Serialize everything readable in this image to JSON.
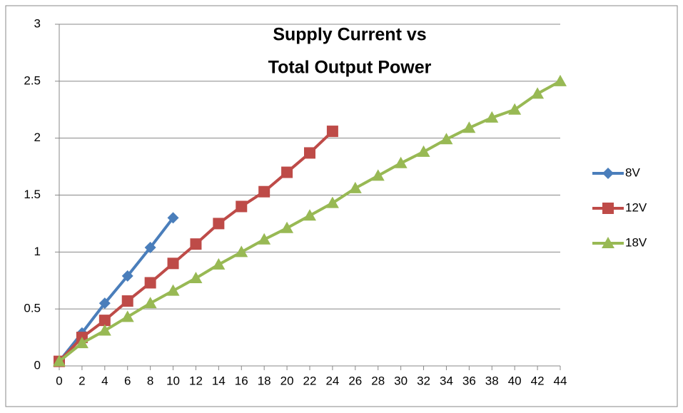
{
  "chart_data": {
    "type": "line",
    "title": [
      "Supply Current vs",
      "Total Output Power"
    ],
    "xlim": [
      0,
      44
    ],
    "xticks": [
      0,
      2,
      4,
      6,
      8,
      10,
      12,
      14,
      16,
      18,
      20,
      22,
      24,
      26,
      28,
      30,
      32,
      34,
      36,
      38,
      40,
      42,
      44
    ],
    "ylim": [
      0,
      3
    ],
    "yticks": [
      0,
      0.5,
      1,
      1.5,
      2,
      2.5,
      3
    ],
    "grid": true,
    "legend": "right",
    "series": [
      {
        "name": "8V",
        "color": "#4a7ebb",
        "marker": "diamond",
        "x": [
          0,
          2,
          4,
          6,
          8,
          10
        ],
        "values": [
          0.04,
          0.29,
          0.55,
          0.79,
          1.04,
          1.3
        ]
      },
      {
        "name": "12V",
        "color": "#be4b48",
        "marker": "square",
        "x": [
          0,
          2,
          4,
          6,
          8,
          10,
          12,
          14,
          16,
          18,
          20,
          22,
          24
        ],
        "values": [
          0.04,
          0.25,
          0.4,
          0.57,
          0.73,
          0.9,
          1.07,
          1.25,
          1.4,
          1.53,
          1.7,
          1.87,
          2.06
        ]
      },
      {
        "name": "18V",
        "color": "#98b954",
        "marker": "triangle",
        "x": [
          0,
          2,
          4,
          6,
          8,
          10,
          12,
          14,
          16,
          18,
          20,
          22,
          24,
          26,
          28,
          30,
          32,
          34,
          36,
          38,
          40,
          42,
          44
        ],
        "values": [
          0.04,
          0.2,
          0.31,
          0.43,
          0.55,
          0.66,
          0.77,
          0.89,
          1.0,
          1.11,
          1.21,
          1.32,
          1.43,
          1.56,
          1.67,
          1.78,
          1.88,
          1.99,
          2.09,
          2.18,
          2.25,
          2.39,
          2.5
        ]
      }
    ]
  }
}
